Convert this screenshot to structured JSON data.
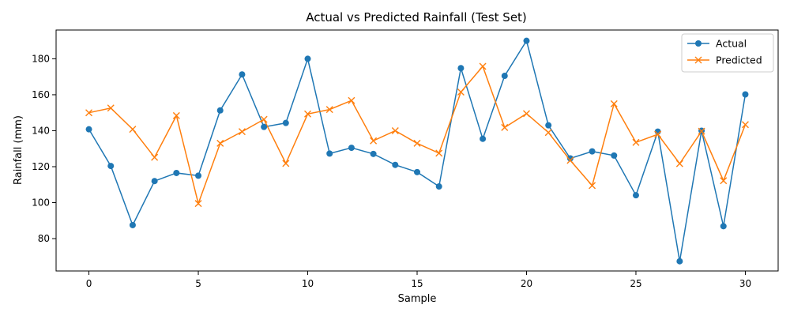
{
  "chart_data": {
    "type": "line",
    "title": "Actual vs Predicted Rainfall (Test Set)",
    "xlabel": "Sample",
    "ylabel": "Rainfall (mm)",
    "xlim": [
      -1.5,
      31.5
    ],
    "ylim": [
      62,
      196
    ],
    "xticks": [
      0,
      5,
      10,
      15,
      20,
      25,
      30
    ],
    "yticks": [
      80,
      100,
      120,
      140,
      160,
      180
    ],
    "legend_position": "top-right",
    "grid": false,
    "x": [
      0,
      1,
      2,
      3,
      4,
      5,
      6,
      7,
      8,
      9,
      10,
      11,
      12,
      13,
      14,
      15,
      16,
      17,
      18,
      19,
      20,
      21,
      22,
      23,
      24,
      25,
      26,
      27,
      28,
      29,
      30
    ],
    "series": [
      {
        "name": "Actual",
        "color": "#1f77b4",
        "marker": "circle",
        "values": [
          140.8,
          120.4,
          87.5,
          112.0,
          116.5,
          115.0,
          151.3,
          171.3,
          142.1,
          144.3,
          180.0,
          127.3,
          130.5,
          127.1,
          121.0,
          117.0,
          109.0,
          174.8,
          135.5,
          170.5,
          190.0,
          143.0,
          124.6,
          128.5,
          126.2,
          104.1,
          139.5,
          67.4,
          140.0,
          86.9,
          160.2
        ]
      },
      {
        "name": "Predicted",
        "color": "#ff7f0e",
        "marker": "x",
        "values": [
          150.0,
          152.6,
          140.8,
          125.2,
          148.4,
          99.5,
          133.0,
          139.5,
          146.3,
          121.8,
          149.3,
          151.8,
          156.8,
          134.4,
          140.0,
          133.0,
          127.5,
          161.5,
          175.8,
          141.8,
          149.5,
          139.0,
          123.5,
          109.5,
          155.0,
          133.5,
          138.0,
          121.7,
          139.7,
          112.2,
          143.4
        ]
      }
    ]
  }
}
